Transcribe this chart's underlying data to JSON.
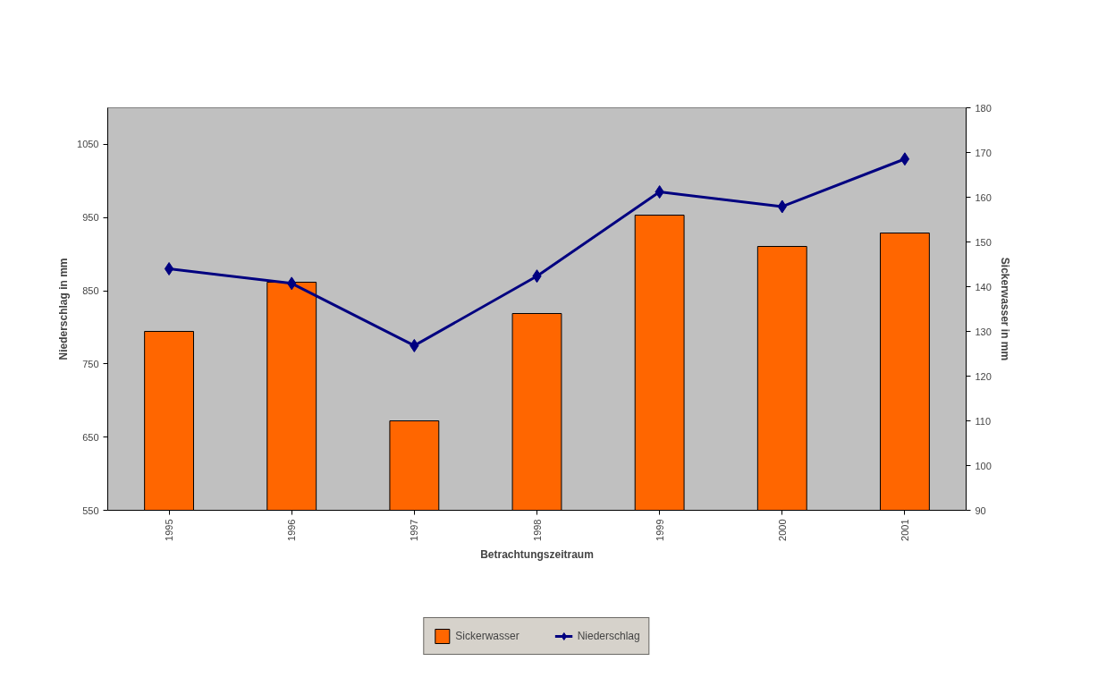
{
  "chart_data": {
    "type": "bar",
    "xlabel": "Betrachtungszeitraum",
    "ylabel": "Niederschlag in mm",
    "y2label": "Sickerwasser in mm",
    "categories": [
      "1995",
      "1996",
      "1997",
      "1998",
      "1999",
      "2000",
      "2001"
    ],
    "series": [
      {
        "name": "Sickerwasser",
        "axis": "y2",
        "color": "#ff6600",
        "values": [
          130,
          141,
          110,
          134,
          156,
          149,
          152
        ]
      },
      {
        "name": "Niederschlag",
        "type": "line",
        "color": "#000080",
        "marker": "diamond",
        "values": [
          880,
          860,
          775,
          870,
          985,
          965,
          1030
        ]
      }
    ],
    "ylim": [
      550,
      1100
    ],
    "yticks": [
      550,
      650,
      750,
      850,
      950,
      1050
    ],
    "y2lim": [
      90,
      180
    ],
    "y2ticks": [
      90,
      100,
      110,
      120,
      130,
      140,
      150,
      160,
      170,
      180
    ],
    "grid": false,
    "legend": "bottom"
  }
}
